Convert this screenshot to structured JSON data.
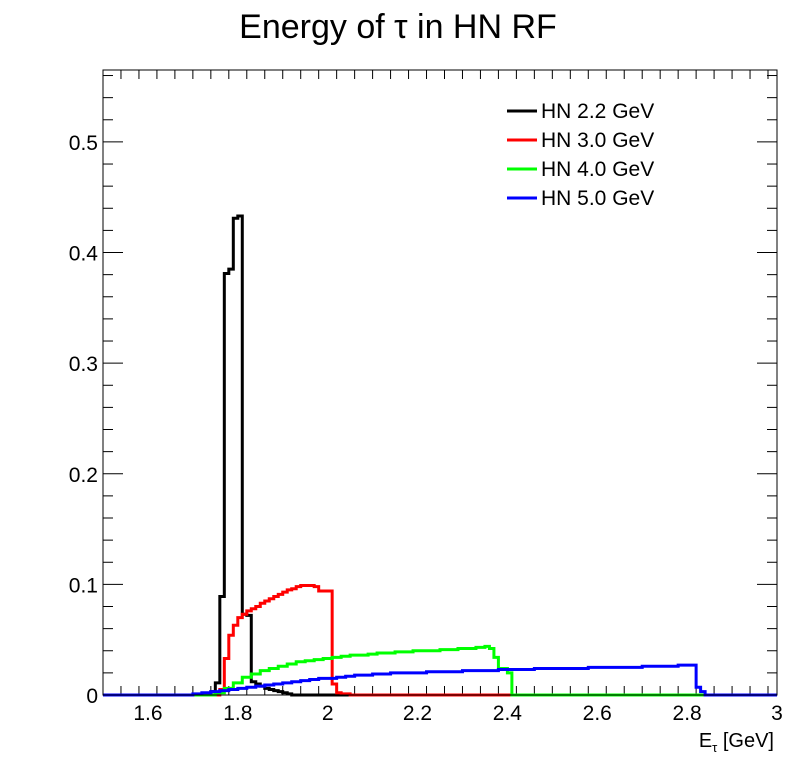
{
  "chart_data": {
    "type": "line",
    "title": "Energy of τ in HN RF",
    "xlabel": "E",
    "xlabel_sub": "τ",
    "xlabel_unit": " [GeV]",
    "ylabel": "",
    "xlim": [
      1.5,
      3.0
    ],
    "ylim": [
      0,
      0.565
    ],
    "xticks": [
      1.6,
      1.8,
      2.0,
      2.2,
      2.4,
      2.6,
      2.8,
      3.0
    ],
    "xtick_labels": [
      "1.6",
      "1.8",
      "2",
      "2.2",
      "2.4",
      "2.6",
      "2.8",
      "3"
    ],
    "yticks": [
      0,
      0.1,
      0.2,
      0.3,
      0.4,
      0.5
    ],
    "ytick_labels": [
      "0",
      "0.1",
      "0.2",
      "0.3",
      "0.4",
      "0.5"
    ],
    "grid": false,
    "legend_position": "top-right",
    "bin_width": 0.01,
    "series": [
      {
        "name": "HN 2.2 GeV",
        "color": "#000000",
        "edges": [
          1.5,
          1.74,
          1.75,
          1.76,
          1.77,
          1.78,
          1.79,
          1.8,
          1.81,
          1.82,
          1.83,
          1.84,
          1.85,
          1.86,
          1.87,
          1.88,
          1.89,
          1.9,
          1.91,
          1.92,
          3.0
        ],
        "values": [
          0,
          0.003,
          0.011,
          0.089,
          0.381,
          0.385,
          0.431,
          0.433,
          0.073,
          0.072,
          0.012,
          0.01,
          0.008,
          0.006,
          0.005,
          0.004,
          0.003,
          0.002,
          0.001,
          0
        ]
      },
      {
        "name": "HN 3.0 GeV",
        "color": "#ff0000",
        "edges": [
          1.5,
          1.76,
          1.77,
          1.78,
          1.79,
          1.8,
          1.81,
          1.82,
          1.83,
          1.84,
          1.85,
          1.86,
          1.87,
          1.88,
          1.89,
          1.9,
          1.91,
          1.92,
          1.93,
          1.94,
          1.95,
          1.96,
          1.97,
          1.98,
          1.99,
          2.0,
          2.01,
          2.02,
          2.03,
          2.04,
          2.05,
          3.0
        ],
        "values": [
          0,
          0.005,
          0.033,
          0.054,
          0.063,
          0.07,
          0.073,
          0.076,
          0.078,
          0.08,
          0.083,
          0.085,
          0.087,
          0.089,
          0.091,
          0.093,
          0.095,
          0.096,
          0.098,
          0.099,
          0.099,
          0.099,
          0.098,
          0.094,
          0.094,
          0.094,
          0.01,
          0.002,
          0.001,
          0.001,
          0
        ]
      },
      {
        "name": "HN 4.0 GeV",
        "color": "#00ff00",
        "edges": [
          1.5,
          1.75,
          1.77,
          1.79,
          1.81,
          1.83,
          1.85,
          1.87,
          1.89,
          1.91,
          1.93,
          1.95,
          1.97,
          1.99,
          2.01,
          2.03,
          2.05,
          2.07,
          2.09,
          2.11,
          2.13,
          2.15,
          2.17,
          2.19,
          2.21,
          2.23,
          2.25,
          2.27,
          2.29,
          2.31,
          2.33,
          2.35,
          2.36,
          2.37,
          2.38,
          2.39,
          2.4,
          2.41,
          3.0
        ],
        "values": [
          0,
          0.002,
          0.006,
          0.011,
          0.016,
          0.019,
          0.022,
          0.024,
          0.026,
          0.028,
          0.03,
          0.031,
          0.032,
          0.033,
          0.034,
          0.035,
          0.036,
          0.036,
          0.037,
          0.038,
          0.038,
          0.039,
          0.039,
          0.04,
          0.04,
          0.04,
          0.041,
          0.041,
          0.042,
          0.042,
          0.043,
          0.044,
          0.042,
          0.034,
          0.024,
          0.024,
          0.02,
          0
        ]
      },
      {
        "name": "HN 5.0 GeV",
        "color": "#0000ff",
        "edges": [
          1.5,
          1.7,
          1.72,
          1.74,
          1.76,
          1.78,
          1.8,
          1.82,
          1.84,
          1.86,
          1.88,
          1.9,
          1.92,
          1.94,
          1.96,
          1.98,
          2.0,
          2.02,
          2.04,
          2.06,
          2.1,
          2.14,
          2.18,
          2.22,
          2.26,
          2.3,
          2.34,
          2.38,
          2.42,
          2.46,
          2.5,
          2.54,
          2.58,
          2.62,
          2.66,
          2.7,
          2.74,
          2.78,
          2.8,
          2.82,
          2.83,
          2.84,
          3.0
        ],
        "values": [
          0,
          0.001,
          0.002,
          0.003,
          0.004,
          0.005,
          0.006,
          0.007,
          0.008,
          0.009,
          0.01,
          0.011,
          0.012,
          0.013,
          0.014,
          0.015,
          0.015,
          0.016,
          0.017,
          0.018,
          0.019,
          0.02,
          0.02,
          0.021,
          0.021,
          0.022,
          0.022,
          0.023,
          0.023,
          0.024,
          0.024,
          0.024,
          0.025,
          0.025,
          0.025,
          0.026,
          0.026,
          0.027,
          0.027,
          0.007,
          0.003,
          0
        ]
      }
    ]
  }
}
